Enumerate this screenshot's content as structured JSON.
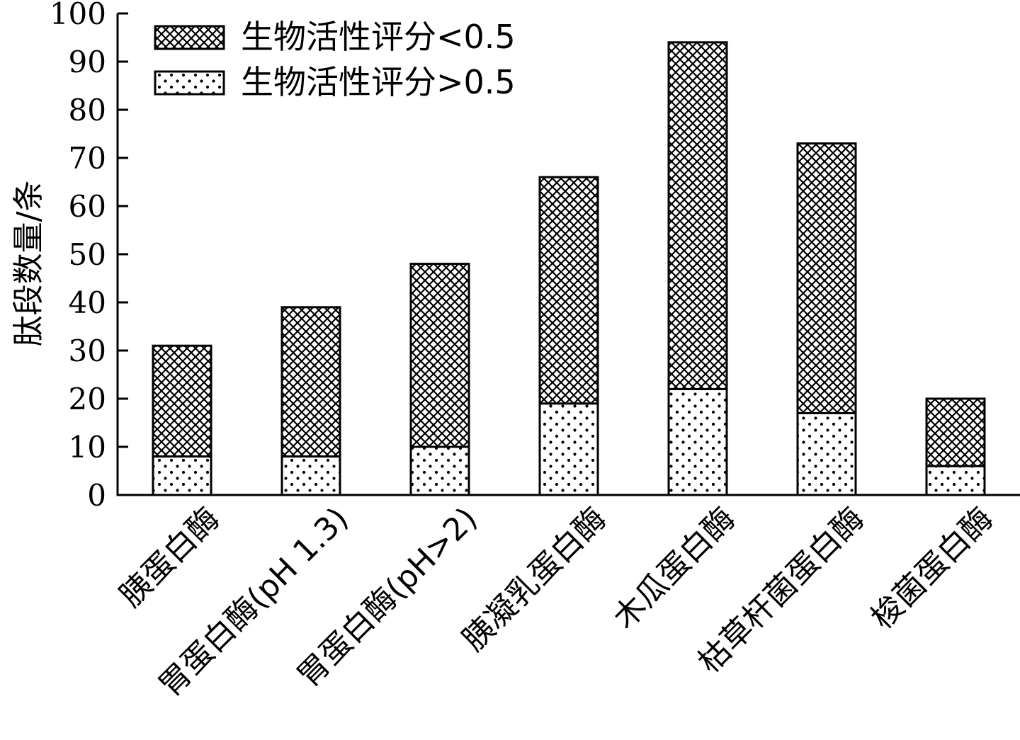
{
  "chart_data": {
    "type": "bar",
    "stacked": true,
    "categories": [
      "胰蛋白酶",
      "胃蛋白酶(pH 1.3)",
      "胃蛋白酶(pH>2)",
      "胰凝乳蛋白酶",
      "木瓜蛋白酶",
      "枯草杆菌蛋白酶",
      "梭菌蛋白酶"
    ],
    "series": [
      {
        "name": "生物活性评分>0.5",
        "pattern": "dots",
        "values": [
          8,
          8,
          10,
          19,
          22,
          17,
          6
        ]
      },
      {
        "name": "生物活性评分<0.5",
        "pattern": "crosshatch",
        "values": [
          23,
          31,
          38,
          47,
          72,
          56,
          14
        ]
      }
    ],
    "xlabel": "",
    "ylabel": "肽段数量/条",
    "ylim": [
      0,
      100
    ],
    "yticks": [
      0,
      10,
      20,
      30,
      40,
      50,
      60,
      70,
      80,
      90,
      100
    ],
    "grid": false,
    "legend_position": "top-left",
    "legend_order": [
      "生物活性评分<0.5",
      "生物活性评分>0.5"
    ],
    "colors": {
      "bar_stroke": "#000000",
      "fill": "#ffffff"
    }
  }
}
